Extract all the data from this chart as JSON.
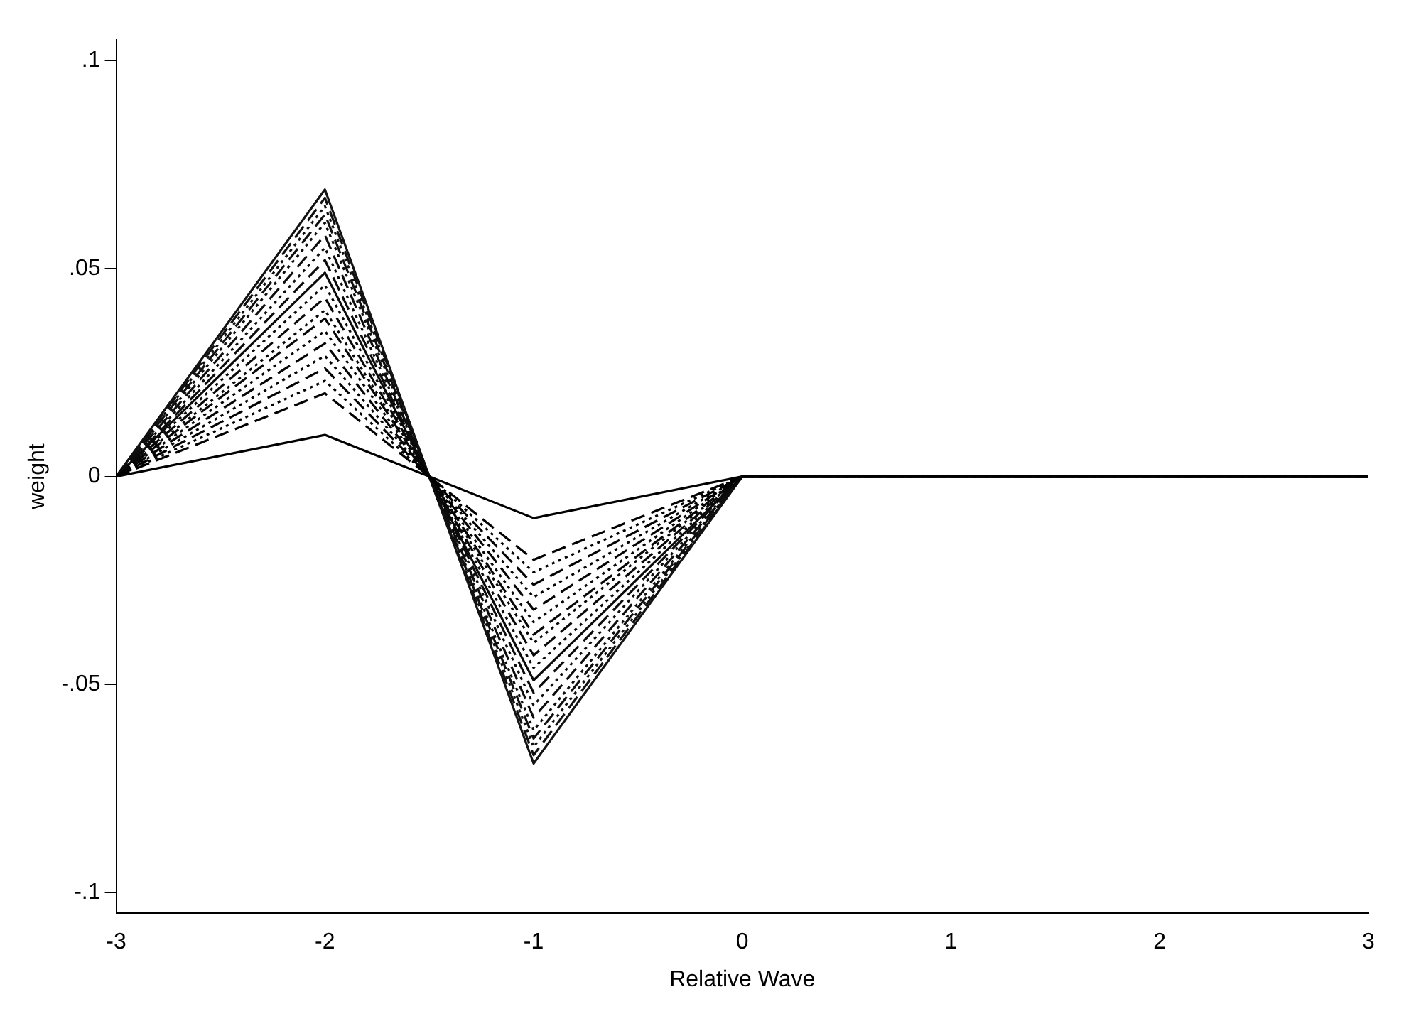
{
  "chart_data": {
    "type": "line",
    "xlabel": "Relative Wave",
    "ylabel": "weight",
    "x": [
      -3,
      -2,
      -1,
      0,
      1,
      2,
      3
    ],
    "xlim": [
      -3,
      3
    ],
    "xticks": [
      -3,
      -2,
      -1,
      0,
      1,
      2,
      3
    ],
    "ylim": [
      -0.105,
      0.105
    ],
    "yticks": [
      {
        "value": -0.1,
        "label": "-.1"
      },
      {
        "value": -0.05,
        "label": "-.05"
      },
      {
        "value": 0,
        "label": "0"
      },
      {
        "value": 0.05,
        "label": ".05"
      },
      {
        "value": 0.1,
        "label": ".1"
      }
    ],
    "grid": false,
    "legend": false,
    "marker": "none",
    "series": [
      {
        "color": "#000000",
        "line_style": "solid",
        "values": [
          0,
          0.01,
          -0.01,
          0,
          0,
          0,
          0
        ]
      },
      {
        "color": "#010101",
        "line_style": "dashed",
        "values": [
          0,
          0.02,
          -0.02,
          0,
          0,
          0,
          0
        ]
      },
      {
        "color": "#020202",
        "line_style": "dotted",
        "values": [
          0,
          0.023,
          -0.023,
          0,
          0,
          0,
          0
        ]
      },
      {
        "color": "#030303",
        "line_style": "dashed",
        "values": [
          0,
          0.026,
          -0.026,
          0,
          0,
          0,
          0
        ]
      },
      {
        "color": "#040404",
        "line_style": "dotted",
        "values": [
          0,
          0.029,
          -0.029,
          0,
          0,
          0,
          0
        ]
      },
      {
        "color": "#050505",
        "line_style": "dashed",
        "values": [
          0,
          0.032,
          -0.032,
          0,
          0,
          0,
          0
        ]
      },
      {
        "color": "#060606",
        "line_style": "dotted",
        "values": [
          0,
          0.035,
          -0.035,
          0,
          0,
          0,
          0
        ]
      },
      {
        "color": "#070707",
        "line_style": "dashed",
        "values": [
          0,
          0.038,
          -0.038,
          0,
          0,
          0,
          0
        ]
      },
      {
        "color": "#080808",
        "line_style": "dotted",
        "values": [
          0,
          0.04,
          -0.04,
          0,
          0,
          0,
          0
        ]
      },
      {
        "color": "#090909",
        "line_style": "dashed",
        "values": [
          0,
          0.043,
          -0.043,
          0,
          0,
          0,
          0
        ]
      },
      {
        "color": "#0a0a0a",
        "line_style": "dotted",
        "values": [
          0,
          0.046,
          -0.046,
          0,
          0,
          0,
          0
        ]
      },
      {
        "color": "#0b0b0b",
        "line_style": "solid",
        "values": [
          0,
          0.049,
          -0.049,
          0,
          0,
          0,
          0
        ]
      },
      {
        "color": "#0c0c0c",
        "line_style": "dashed",
        "values": [
          0,
          0.052,
          -0.052,
          0,
          0,
          0,
          0
        ]
      },
      {
        "color": "#0d0d0d",
        "line_style": "dotted",
        "values": [
          0,
          0.055,
          -0.055,
          0,
          0,
          0,
          0
        ]
      },
      {
        "color": "#0e0e0e",
        "line_style": "dashed",
        "values": [
          0,
          0.058,
          -0.058,
          0,
          0,
          0,
          0
        ]
      },
      {
        "color": "#0f0f0f",
        "line_style": "dotted",
        "values": [
          0,
          0.061,
          -0.061,
          0,
          0,
          0,
          0
        ]
      },
      {
        "color": "#101010",
        "line_style": "dashed",
        "values": [
          0,
          0.063,
          -0.063,
          0,
          0,
          0,
          0
        ]
      },
      {
        "color": "#111111",
        "line_style": "dotted",
        "values": [
          0,
          0.065,
          -0.065,
          0,
          0,
          0,
          0
        ]
      },
      {
        "color": "#121212",
        "line_style": "dashed",
        "values": [
          0,
          0.067,
          -0.067,
          0,
          0,
          0,
          0
        ]
      },
      {
        "color": "#131313",
        "line_style": "solid",
        "values": [
          0,
          0.069,
          -0.069,
          0,
          0,
          0,
          0
        ]
      }
    ]
  }
}
